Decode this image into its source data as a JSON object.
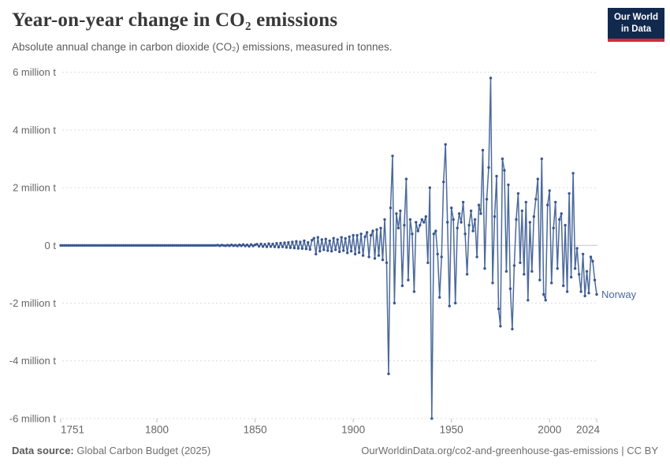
{
  "header": {
    "title": "Year-on-year change in CO₂ emissions",
    "subtitle": "Absolute annual change in carbon dioxide (CO₂) emissions, measured in tonnes.",
    "logo": {
      "line1": "Our World",
      "line2": "in Data"
    }
  },
  "footer": {
    "source_label": "Data source:",
    "source_text": " Global Carbon Budget (2025)",
    "rights": "OurWorldinData.org/co2-and-greenhouse-gas-emissions | CC BY"
  },
  "colors": {
    "line": "#4c6a9c",
    "marker": "#3a5691",
    "entity_label": "#4c6a9c",
    "grid": "#dcdcdc",
    "zero_line": "#c6c6c6",
    "axis_tick": "#c0c0c0",
    "axis_text": "#666666",
    "logo_bg": "#12294e",
    "logo_red": "#d22a3c"
  },
  "chart_data": {
    "type": "line",
    "title": "Year-on-year change in CO₂ emissions",
    "subtitle": "Absolute annual change in carbon dioxide (CO₂) emissions, measured in tonnes.",
    "entity": "Norway",
    "unit": "million tonnes",
    "x_start": 1751,
    "x_end": 2024,
    "ylim": [
      -6,
      6
    ],
    "grid": "dashed-horizontal",
    "legend_position": "end-of-line-label",
    "x_ticks": [
      "1751",
      "1800",
      "1850",
      "1900",
      "1950",
      "2000",
      "2024"
    ],
    "y_ticks": [
      {
        "value": 6,
        "label": "6 million t"
      },
      {
        "value": 4,
        "label": "4 million t"
      },
      {
        "value": 2,
        "label": "2 million t"
      },
      {
        "value": 0,
        "label": "0 t"
      },
      {
        "value": -2,
        "label": "-2 million t"
      },
      {
        "value": -4,
        "label": "-4 million t"
      },
      {
        "value": -6,
        "label": "-6 million t"
      }
    ],
    "series": [
      {
        "name": "Norway",
        "color": "#4c6a9c",
        "first_year": 1751,
        "values_million_t": [
          0,
          0,
          0,
          0,
          0,
          0,
          0,
          0,
          0,
          0,
          0,
          0,
          0,
          0,
          0,
          0,
          0,
          0,
          0,
          0,
          0,
          0,
          0,
          0,
          0,
          0,
          0,
          0,
          0,
          0,
          0,
          0,
          0,
          0,
          0,
          0,
          0,
          0,
          0,
          0,
          0,
          0,
          0,
          0,
          0,
          0,
          0,
          0,
          0,
          0,
          0,
          0,
          0,
          0,
          0,
          0,
          0,
          0,
          0,
          0,
          0,
          0,
          0,
          0,
          0,
          0,
          0,
          0,
          0,
          0,
          0,
          0,
          0,
          0,
          0,
          0,
          0,
          0,
          0,
          0,
          0.01,
          -0.01,
          0.01,
          0,
          -0.01,
          0.01,
          -0.01,
          0.02,
          -0.01,
          0.01,
          -0.02,
          0.02,
          -0.01,
          0.03,
          -0.02,
          0.02,
          -0.03,
          0.03,
          -0.02,
          0.02,
          0.04,
          -0.03,
          0.05,
          -0.04,
          0.04,
          -0.05,
          0.06,
          -0.04,
          0.05,
          -0.05,
          0.07,
          -0.06,
          0.08,
          -0.05,
          0.09,
          -0.07,
          0.1,
          -0.08,
          0.12,
          -0.09,
          0.14,
          -0.1,
          0.12,
          -0.11,
          0.16,
          -0.12,
          0.1,
          -0.14,
          0.18,
          0.25,
          -0.3,
          0.28,
          -0.2,
          0.2,
          -0.15,
          0.22,
          -0.18,
          0.16,
          -0.2,
          0.25,
          -0.15,
          0.2,
          -0.22,
          0.28,
          -0.18,
          0.24,
          -0.26,
          0.3,
          -0.2,
          0.35,
          -0.3,
          0.35,
          -0.25,
          0.4,
          -0.35,
          0.3,
          0.45,
          -0.4,
          0.35,
          0.5,
          -0.45,
          0.55,
          -0.35,
          0.6,
          -0.5,
          0.9,
          -0.6,
          -4.45,
          1.3,
          3.1,
          -2,
          1.1,
          0.6,
          1.2,
          -1.4,
          0.7,
          2.3,
          -1.2,
          0.9,
          0.4,
          -1.6,
          0.8,
          0.5,
          0.7,
          0.9,
          0.8,
          1,
          -0.6,
          2,
          -6,
          0.4,
          0.5,
          -0.3,
          -1.8,
          -0.4,
          2.2,
          3.5,
          0.8,
          -2.1,
          1.3,
          0.9,
          -2,
          0.6,
          1.1,
          0.8,
          1.5,
          0.4,
          -1,
          0.7,
          1.2,
          0.5,
          0.9,
          -0.4,
          1.4,
          1.1,
          3.3,
          -0.8,
          1.6,
          2.7,
          5.8,
          -1.3,
          1,
          2.4,
          -2.2,
          -2.8,
          3,
          2.6,
          -0.9,
          2.1,
          -1.5,
          -2.9,
          -0.7,
          0.9,
          1.8,
          -0.6,
          1.2,
          -1,
          1.5,
          -1.9,
          0.8,
          -0.9,
          1,
          1.6,
          2.3,
          -1.2,
          3,
          -1.7,
          -1.9,
          1.4,
          1.9,
          -1.3,
          0.6,
          1.5,
          -0.8,
          0.9,
          1.1,
          -1.4,
          0.7,
          -1.6,
          1.8,
          -1.1,
          2.5,
          -0.8,
          -0.1,
          -1,
          -1.6,
          -0.3,
          -1.75,
          -0.9,
          -1.65,
          -0.4,
          -0.55,
          -1.2,
          -1.7
        ]
      }
    ]
  }
}
